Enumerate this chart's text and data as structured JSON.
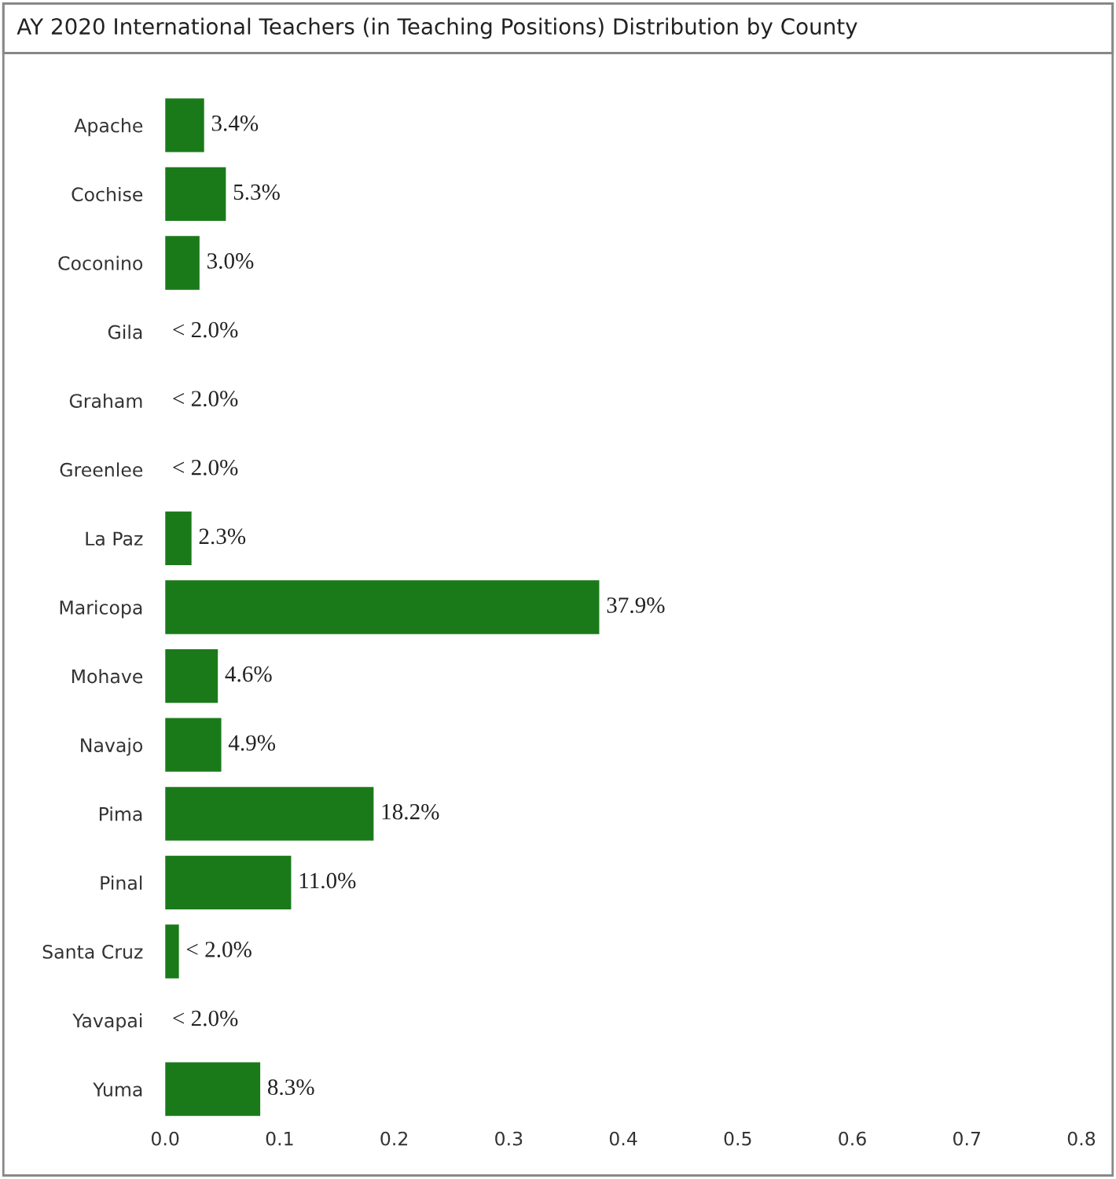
{
  "chart_data": {
    "type": "bar",
    "orientation": "horizontal",
    "title": "AY 2020 International Teachers (in Teaching Positions) Distribution by County",
    "categories": [
      "Apache",
      "Cochise",
      "Coconino",
      "Gila",
      "Graham",
      "Greenlee",
      "La Paz",
      "Maricopa",
      "Mohave",
      "Navajo",
      "Pima",
      "Pinal",
      "Santa Cruz",
      "Yavapai",
      "Yuma"
    ],
    "values": [
      0.034,
      0.053,
      0.03,
      null,
      null,
      null,
      0.023,
      0.379,
      0.046,
      0.049,
      0.182,
      0.11,
      0.012,
      null,
      0.083
    ],
    "value_labels": [
      "3.4%",
      "5.3%",
      "3.0%",
      "< 2.0%",
      "< 2.0%",
      "< 2.0%",
      "2.3%",
      "37.9%",
      "4.6%",
      "4.9%",
      "18.2%",
      "11.0%",
      "< 2.0%",
      "< 2.0%",
      "8.3%"
    ],
    "color": "#1a7a1a",
    "xlim": [
      0,
      0.8
    ],
    "xticks": [
      {
        "value": 0,
        "label": "0.0"
      },
      {
        "value": 0.1,
        "label": "0.1"
      },
      {
        "value": 0.2,
        "label": "0.2"
      },
      {
        "value": 0.3,
        "label": "0.3"
      },
      {
        "value": 0.4,
        "label": "0.4"
      },
      {
        "value": 0.5,
        "label": "0.5"
      },
      {
        "value": 0.6,
        "label": "0.6"
      },
      {
        "value": 0.7,
        "label": "0.7"
      },
      {
        "value": 0.8,
        "label": "0.8"
      }
    ],
    "grid": false
  }
}
